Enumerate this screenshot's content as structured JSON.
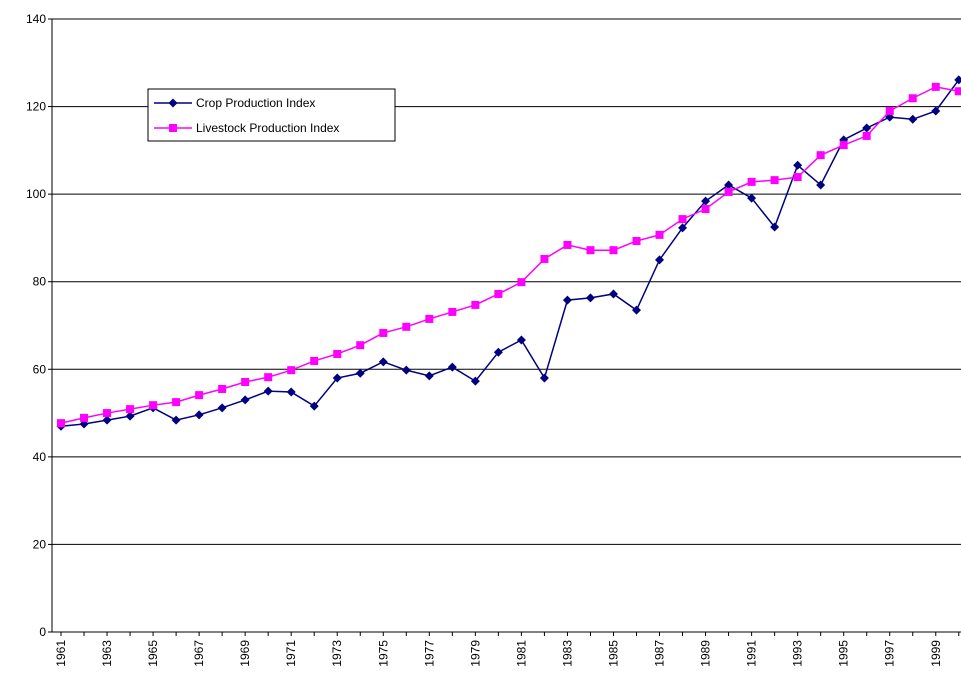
{
  "chart_data": {
    "type": "line",
    "categories": [
      "1961",
      null,
      "1963",
      null,
      "1965",
      null,
      "1967",
      null,
      "1969",
      null,
      "1971",
      null,
      "1973",
      null,
      "1975",
      null,
      "1977",
      null,
      "1979",
      null,
      "1981",
      null,
      "1983",
      null,
      "1985",
      null,
      "1987",
      null,
      "1989",
      null,
      "1991",
      null,
      "1993",
      null,
      "1995",
      null,
      "1997",
      null,
      "1999",
      null
    ],
    "series": [
      {
        "name": "Crop Production Index",
        "color": "#000080",
        "marker": "diamond",
        "values": [
          47.0,
          47.5,
          48.4,
          49.3,
          51.2,
          48.4,
          49.6,
          51.2,
          53.0,
          55.0,
          54.8,
          51.6,
          58.0,
          59.1,
          61.7,
          59.8,
          58.5,
          60.5,
          57.3,
          63.9,
          66.7,
          58.0,
          75.8,
          76.3,
          77.2,
          73.5,
          85.0,
          92.3,
          98.4,
          102.1,
          99.1,
          92.5,
          106.6,
          102.1,
          112.4,
          115.1,
          117.6,
          117.1,
          119.0,
          126.1
        ]
      },
      {
        "name": "Livestock Production Index",
        "color": "#ff00ff",
        "marker": "square",
        "values": [
          47.7,
          48.9,
          50.0,
          50.9,
          51.8,
          52.5,
          54.1,
          55.5,
          57.1,
          58.2,
          59.8,
          61.9,
          63.5,
          65.5,
          68.3,
          69.7,
          71.5,
          73.1,
          74.7,
          77.2,
          79.9,
          85.2,
          88.4,
          87.2,
          87.2,
          89.3,
          90.7,
          94.3,
          96.6,
          100.5,
          102.8,
          103.2,
          103.9,
          108.9,
          111.2,
          113.3,
          119.0,
          121.9,
          124.5,
          123.5
        ]
      }
    ],
    "ylim": [
      0,
      140
    ],
    "yticks": [
      0,
      20,
      40,
      60,
      80,
      100,
      120,
      140
    ],
    "grid": true,
    "legend": "upper left"
  }
}
